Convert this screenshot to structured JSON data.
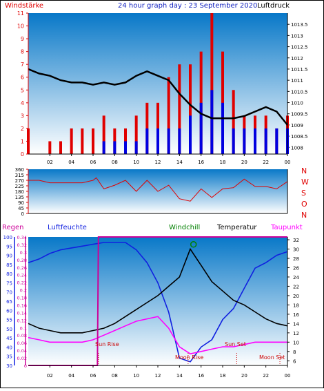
{
  "header": {
    "left_label": "Windstärke",
    "title": "24 hour graph day : 23 September 2020",
    "right_label": "Luftdruck"
  },
  "bottom_header": {
    "regen": "Regen",
    "luftfeuchte": "Luftfeuchte",
    "windchill": "Windchill",
    "temperatur": "Temperatur",
    "taupunkt": "Taupunkt"
  },
  "annotations": {
    "sun_rise": "Sun Rise",
    "sun_set": "Sun Set",
    "moon_rise": "Moon Rise",
    "moon_set": "Moon Set"
  },
  "direction_labels": [
    "N",
    "W",
    "S",
    "O",
    "N"
  ],
  "colors": {
    "sky_top": "#0878c8",
    "sky_bottom": "#ffffff",
    "wind_gust": "#e00000",
    "wind_avg": "#0000e0",
    "pressure": "#000000",
    "humidity": "#1020e0",
    "temperature": "#000000",
    "dewpoint": "#ff00ff",
    "windchill": "#008000",
    "rain": "#cc0099",
    "axis_left": "#e00000",
    "axis_humidity": "#1020e0",
    "title": "#1020c0"
  },
  "chart_data": [
    {
      "type": "bar",
      "title": "24 hour graph day : 23 September 2020",
      "ylabel_left": "Windstärke",
      "ylabel_right": "Luftdruck",
      "x_ticks": [
        "02",
        "04",
        "06",
        "08",
        "10",
        "12",
        "14",
        "16",
        "18",
        "20",
        "22",
        "00"
      ],
      "ylim_left": [
        0,
        11
      ],
      "y_ticks_left": [
        0,
        1,
        2,
        3,
        4,
        5,
        6,
        7,
        8,
        9,
        10,
        11
      ],
      "ylim_right": [
        1007.7,
        1014
      ],
      "y_ticks_right": [
        1008,
        1008.5,
        1009,
        1009.5,
        1010,
        1010.5,
        1011,
        1011.5,
        1012,
        1012.5,
        1013,
        1013.5
      ],
      "y_tick_labels_right": [
        "1008",
        "1008.5",
        "1009",
        "1009.5",
        "1010",
        "1010.5",
        "1011",
        "1011.5",
        "1012",
        "1012.5",
        "1013",
        "1013.5"
      ],
      "pressure_hours": [
        0,
        1,
        2,
        3,
        4,
        5,
        6,
        7,
        8,
        9,
        10,
        11,
        12,
        13,
        14,
        15,
        16,
        17,
        18,
        19,
        20,
        21,
        22,
        23,
        24
      ],
      "pressure_values": [
        1011.5,
        1011.3,
        1011.2,
        1011.0,
        1010.9,
        1010.9,
        1010.8,
        1010.9,
        1010.8,
        1010.9,
        1011.2,
        1011.4,
        1011.2,
        1011.0,
        1010.4,
        1009.9,
        1009.5,
        1009.3,
        1009.3,
        1009.3,
        1009.4,
        1009.6,
        1009.8,
        1009.6,
        1009.0
      ],
      "gust_hours": [
        0,
        1,
        2,
        3,
        4,
        5,
        6,
        7,
        8,
        9,
        10,
        11,
        12,
        13,
        14,
        15,
        16,
        17,
        18,
        19,
        20,
        21,
        22,
        23,
        24
      ],
      "gust_values": [
        2,
        0,
        1,
        1,
        2,
        2,
        2,
        3,
        2,
        2,
        3,
        4,
        4,
        6,
        7,
        7,
        8,
        11,
        8,
        5,
        3,
        3,
        3,
        2,
        3
      ],
      "avg_hours": [
        0,
        1,
        2,
        3,
        4,
        5,
        6,
        7,
        8,
        9,
        10,
        11,
        12,
        13,
        14,
        15,
        16,
        17,
        18,
        19,
        20,
        21,
        22,
        23,
        24
      ],
      "avg_values": [
        0,
        0,
        0,
        0,
        0,
        0,
        0,
        1,
        1,
        1,
        1,
        2,
        2,
        2,
        2,
        3,
        4,
        5,
        4,
        2,
        2,
        2,
        2,
        2,
        2
      ]
    },
    {
      "type": "line",
      "ylim": [
        0,
        360
      ],
      "y_ticks": [
        0,
        45,
        90,
        135,
        180,
        225,
        270,
        315,
        360
      ],
      "y_tick_labels": [
        "0",
        "45",
        "90",
        "135",
        "180",
        "225",
        "270",
        "315",
        "360"
      ],
      "x_ticks": [
        "02",
        "04",
        "06",
        "08",
        "10",
        "12",
        "14",
        "16",
        "18",
        "20",
        "22",
        "00"
      ],
      "series": [
        {
          "hours": [
            0,
            1,
            2,
            3,
            4,
            5,
            6,
            6.3,
            7,
            8,
            9,
            10,
            11,
            12,
            13,
            14,
            15,
            16,
            17,
            18,
            19,
            20,
            21,
            22,
            23,
            24
          ],
          "values": [
            270,
            270,
            250,
            250,
            250,
            250,
            270,
            290,
            200,
            230,
            270,
            180,
            270,
            180,
            230,
            120,
            100,
            200,
            130,
            200,
            210,
            280,
            220,
            220,
            200,
            260
          ]
        }
      ]
    },
    {
      "type": "line",
      "y_ticks_rain": [
        0,
        0.02,
        0.04,
        0.06,
        0.08,
        0.1,
        0.12,
        0.14,
        0.16,
        0.18,
        0.2,
        0.22,
        0.24,
        0.26,
        0.28,
        0.3,
        0.32,
        0.34
      ],
      "y_tick_labels_rain": [
        "0",
        "0.02",
        "0.04",
        "0.06",
        "0.08",
        "0.1",
        "0.12",
        "0.14",
        "0.16",
        "0.18",
        "0.2",
        "0.22",
        "0.24",
        "0.26",
        "0.28",
        "0.3",
        "0.32",
        "0.34"
      ],
      "y_ticks_humidity": [
        30,
        35,
        40,
        45,
        50,
        55,
        60,
        65,
        70,
        75,
        80,
        85,
        90,
        95,
        100
      ],
      "y_tick_labels_humidity": [
        "30",
        "35",
        "40",
        "45",
        "50",
        "55",
        "60",
        "65",
        "70",
        "75",
        "80",
        "85",
        "90",
        "95",
        "100"
      ],
      "y_ticks_temp": [
        6,
        8,
        10,
        12,
        14,
        16,
        18,
        20,
        22,
        24,
        26,
        28,
        30,
        32
      ],
      "y_tick_labels_temp": [
        "6",
        "8",
        "10",
        "12",
        "14",
        "16",
        "18",
        "20",
        "22",
        "24",
        "26",
        "28",
        "30",
        "32"
      ],
      "ylim_temp": [
        5,
        32.6
      ],
      "ylim_humidity": [
        30,
        100
      ],
      "ylim_rain": [
        0,
        0.34
      ],
      "x_ticks": [
        "02",
        "04",
        "06",
        "08",
        "10",
        "12",
        "14",
        "16",
        "18",
        "20",
        "22",
        "00"
      ],
      "series": [
        {
          "name": "Luftfeuchte",
          "hours": [
            0,
            1,
            2,
            3,
            4,
            5,
            6,
            7,
            8,
            9,
            10,
            11,
            12,
            13,
            14,
            15,
            16,
            17,
            18,
            19,
            20,
            21,
            22,
            23,
            24
          ],
          "values": [
            86,
            88,
            91,
            93,
            94,
            95,
            96,
            97,
            97,
            97,
            93,
            86,
            75,
            59,
            34,
            32,
            40,
            44,
            55,
            61,
            72,
            83,
            86,
            90,
            92
          ]
        },
        {
          "name": "Temperatur",
          "hours": [
            0,
            1,
            2,
            3,
            4,
            5,
            6,
            7,
            8,
            9,
            10,
            11,
            12,
            13,
            14,
            15,
            16,
            17,
            18,
            19,
            20,
            21,
            22,
            23,
            24
          ],
          "values": [
            14,
            13,
            12.5,
            12,
            12,
            12,
            12.5,
            13,
            14,
            15.5,
            17,
            18.5,
            20,
            22,
            24,
            30,
            26.5,
            23,
            21,
            19,
            18,
            16.5,
            15,
            14,
            13.5
          ]
        },
        {
          "name": "Taupunkt",
          "hours": [
            0,
            1,
            2,
            3,
            4,
            5,
            6,
            7,
            8,
            9,
            10,
            11,
            12,
            13,
            14,
            15,
            16,
            17,
            18,
            19,
            20,
            21,
            22,
            23,
            24
          ],
          "values": [
            11,
            10.5,
            10,
            10,
            10,
            10,
            10.5,
            11.5,
            12.5,
            13.5,
            14.5,
            15,
            15.5,
            13,
            9,
            7.5,
            8,
            8.5,
            9,
            9,
            9.5,
            10,
            10,
            10,
            10
          ]
        },
        {
          "name": "Regen",
          "hours": [
            0,
            6.4,
            6.5,
            24
          ],
          "values": [
            0,
            0,
            0.34,
            0.34
          ]
        }
      ],
      "windchill_point": {
        "hour": 15.3,
        "value": 31
      }
    }
  ]
}
